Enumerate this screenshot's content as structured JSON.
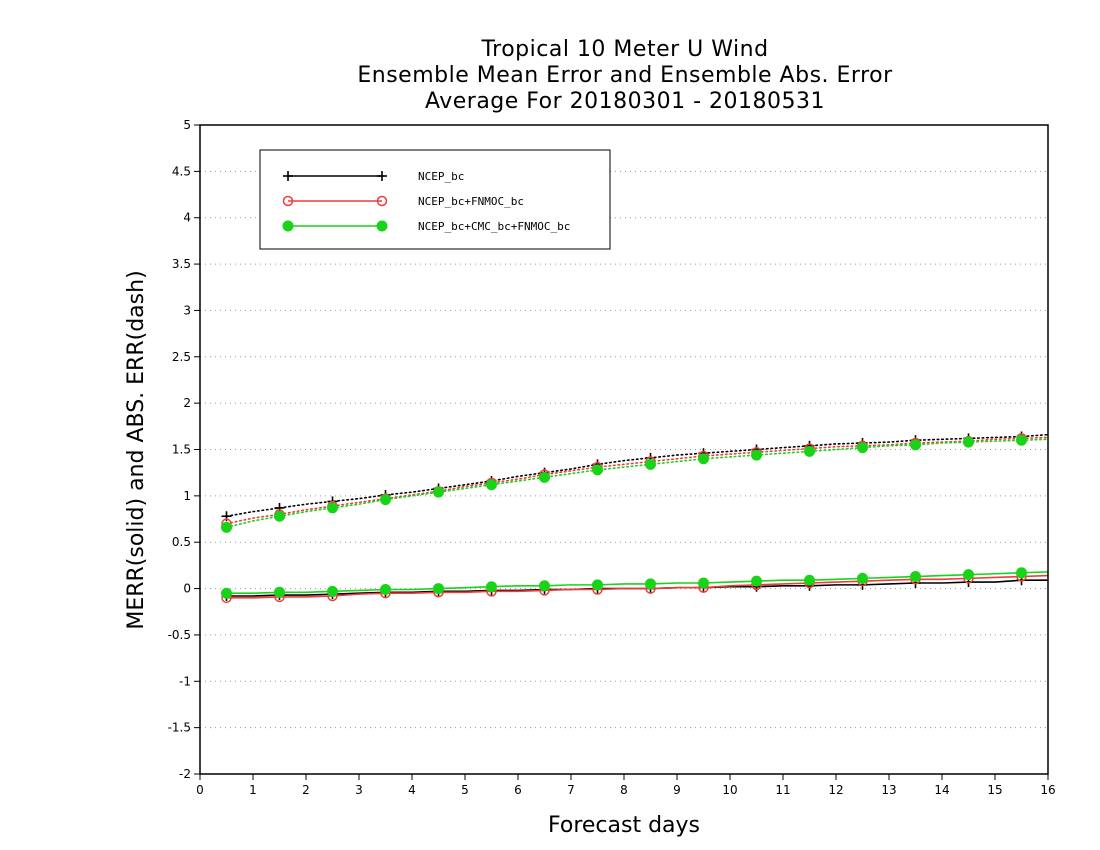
{
  "chart_data": {
    "type": "line",
    "title_lines": [
      "Tropical 10 Meter U Wind",
      "Ensemble Mean Error and Ensemble Abs. Error",
      "Average For 20180301 - 20180531"
    ],
    "xlabel": "Forecast days",
    "ylabel": "MERR(solid) and ABS. ERR(dash)",
    "xlim": [
      0,
      16
    ],
    "ylim": [
      -2,
      5
    ],
    "xticks": [
      "0",
      "1",
      "2",
      "3",
      "4",
      "5",
      "6",
      "7",
      "8",
      "9",
      "10",
      "11",
      "12",
      "13",
      "14",
      "15",
      "16"
    ],
    "yticks": [
      "-2",
      "-1.5",
      "-1",
      "-0.5",
      "0",
      "0.5",
      "1",
      "1.5",
      "2",
      "2.5",
      "3",
      "3.5",
      "4",
      "4.5",
      "5"
    ],
    "grid": true,
    "legend_position": "top-left",
    "x": [
      0.5,
      1,
      1.5,
      2,
      2.5,
      3,
      3.5,
      4,
      4.5,
      5,
      5.5,
      6,
      6.5,
      7,
      7.5,
      8,
      8.5,
      9,
      9.5,
      10,
      10.5,
      11,
      11.5,
      12,
      12.5,
      13,
      13.5,
      14,
      14.5,
      15,
      15.5,
      16
    ],
    "series": [
      {
        "name": "NCEP_bc",
        "color": "#000000",
        "marker": "plus",
        "merr": [
          -0.08,
          -0.08,
          -0.07,
          -0.07,
          -0.06,
          -0.05,
          -0.04,
          -0.04,
          -0.03,
          -0.03,
          -0.02,
          -0.02,
          -0.01,
          -0.01,
          0.0,
          0.0,
          0.0,
          0.01,
          0.01,
          0.02,
          0.02,
          0.03,
          0.03,
          0.04,
          0.04,
          0.05,
          0.06,
          0.06,
          0.07,
          0.07,
          0.09,
          0.09
        ],
        "abs_err": [
          0.78,
          0.83,
          0.87,
          0.91,
          0.94,
          0.97,
          1.01,
          1.04,
          1.08,
          1.12,
          1.16,
          1.21,
          1.25,
          1.29,
          1.34,
          1.38,
          1.41,
          1.44,
          1.46,
          1.48,
          1.5,
          1.52,
          1.54,
          1.56,
          1.57,
          1.58,
          1.6,
          1.61,
          1.62,
          1.63,
          1.64,
          1.66
        ]
      },
      {
        "name": "NCEP_bc+FNMOC_bc",
        "color": "#f03c3c",
        "marker": "open-circle",
        "merr": [
          -0.1,
          -0.1,
          -0.09,
          -0.09,
          -0.08,
          -0.06,
          -0.05,
          -0.05,
          -0.04,
          -0.04,
          -0.03,
          -0.03,
          -0.02,
          -0.01,
          -0.01,
          0.0,
          0.0,
          0.01,
          0.01,
          0.03,
          0.04,
          0.05,
          0.06,
          0.07,
          0.08,
          0.09,
          0.1,
          0.1,
          0.11,
          0.12,
          0.13,
          0.14
        ],
        "abs_err": [
          0.7,
          0.76,
          0.8,
          0.85,
          0.89,
          0.93,
          0.97,
          1.01,
          1.05,
          1.1,
          1.14,
          1.18,
          1.23,
          1.27,
          1.31,
          1.34,
          1.37,
          1.4,
          1.43,
          1.45,
          1.47,
          1.49,
          1.51,
          1.53,
          1.54,
          1.55,
          1.57,
          1.58,
          1.59,
          1.61,
          1.62,
          1.63
        ]
      },
      {
        "name": "NCEP_bc+CMC_bc+FNMOC_bc",
        "color": "#19d319",
        "marker": "filled-circle",
        "merr": [
          -0.05,
          -0.05,
          -0.04,
          -0.04,
          -0.03,
          -0.02,
          -0.01,
          -0.01,
          0.0,
          0.01,
          0.02,
          0.03,
          0.03,
          0.04,
          0.04,
          0.05,
          0.05,
          0.06,
          0.06,
          0.07,
          0.08,
          0.09,
          0.09,
          0.1,
          0.11,
          0.12,
          0.13,
          0.14,
          0.15,
          0.16,
          0.17,
          0.18
        ],
        "abs_err": [
          0.66,
          0.73,
          0.78,
          0.83,
          0.87,
          0.91,
          0.96,
          1.0,
          1.04,
          1.08,
          1.12,
          1.16,
          1.2,
          1.24,
          1.28,
          1.31,
          1.34,
          1.37,
          1.4,
          1.42,
          1.44,
          1.46,
          1.48,
          1.5,
          1.52,
          1.54,
          1.55,
          1.57,
          1.58,
          1.59,
          1.6,
          1.61
        ]
      }
    ]
  }
}
